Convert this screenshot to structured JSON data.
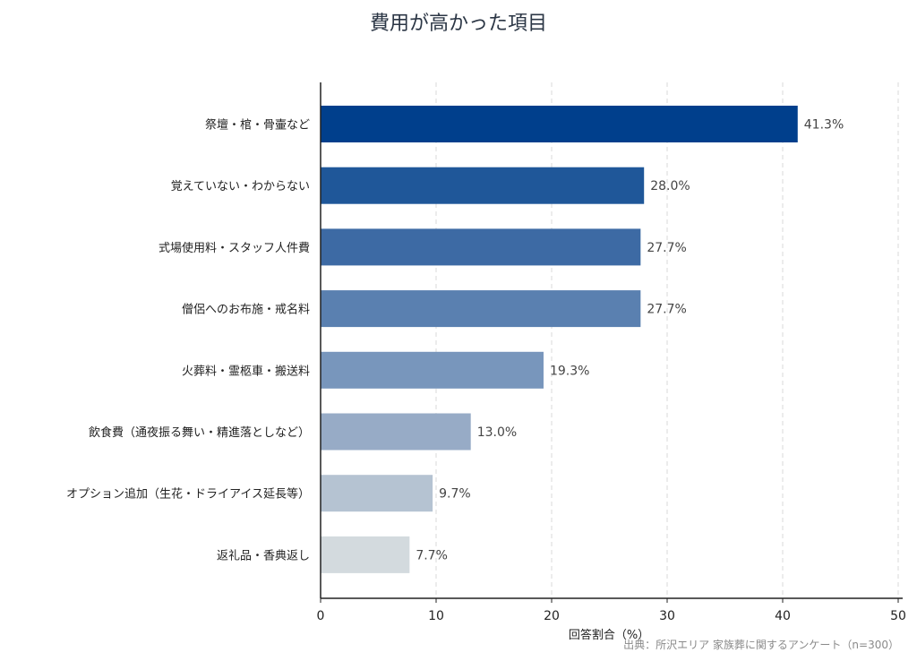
{
  "chart_data": {
    "type": "bar",
    "orientation": "horizontal",
    "title": "費用が高かった項目",
    "xlabel": "回答割合（%）",
    "ylabel": "",
    "xlim": [
      0,
      50
    ],
    "xticks": [
      0,
      10,
      20,
      30,
      40,
      50
    ],
    "grid": "vertical dashed",
    "categories": [
      "祭壇・棺・骨壷など",
      "覚えていない・わからない",
      "式場使用料・スタッフ人件費",
      "僧侶へのお布施・戒名料",
      "火葬料・霊柩車・搬送料",
      "飲食費（通夜振る舞い・精進落としなど）",
      "オプション追加（生花・ドライアイス延長等）",
      "返礼品・香典返し"
    ],
    "values": [
      41.3,
      28.0,
      27.7,
      27.7,
      19.3,
      13.0,
      9.7,
      7.7
    ],
    "value_labels": [
      "41.3%",
      "28.0%",
      "27.7%",
      "27.7%",
      "19.3%",
      "13.0%",
      "9.7%",
      "7.7%"
    ],
    "colors": [
      "#003f8c",
      "#1f5799",
      "#3d6aa4",
      "#5a80b0",
      "#7896bc",
      "#97abc6",
      "#b5c3d2",
      "#d3dade"
    ]
  },
  "source": "出典：所沢エリア 家族葬に関するアンケート（n=300）"
}
